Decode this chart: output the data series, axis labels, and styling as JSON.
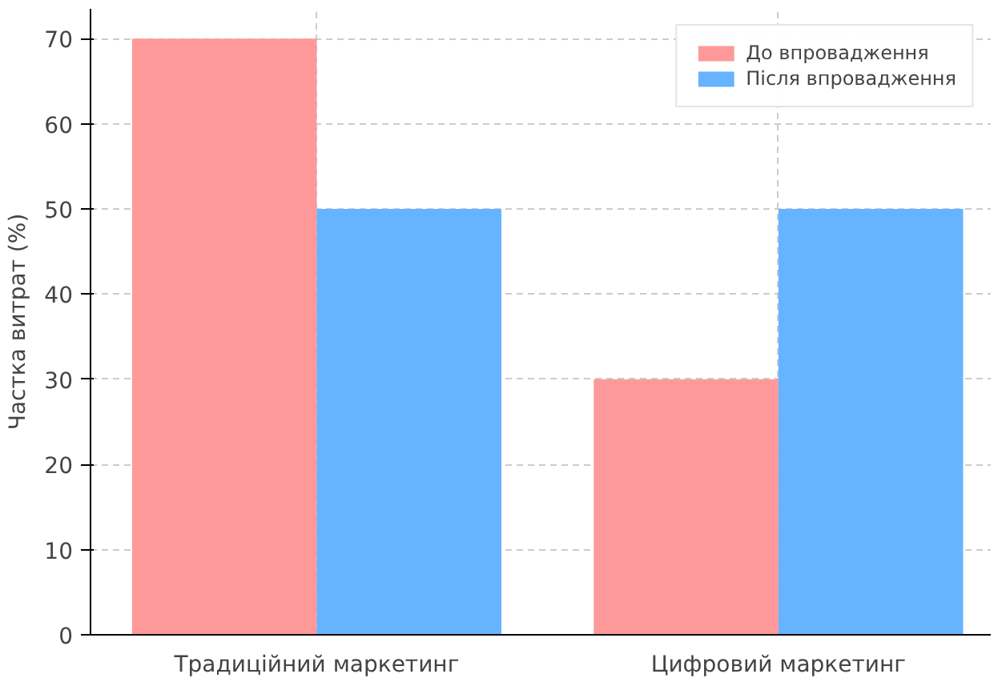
{
  "chart_data": {
    "type": "bar",
    "ylabel": "Частка витрат (%)",
    "categories": [
      "Традиційний маркетинг",
      "Цифровий маркетинг"
    ],
    "series": [
      {
        "name": "До впровадження",
        "color": "#ff9999",
        "values": [
          70,
          30
        ]
      },
      {
        "name": "Після впровадження",
        "color": "#66b3ff",
        "values": [
          50,
          50
        ]
      }
    ],
    "ylim": [
      0,
      73.5
    ],
    "yticks": [
      0,
      10,
      20,
      30,
      40,
      50,
      60,
      70
    ],
    "grid": true,
    "legend": "top right"
  }
}
